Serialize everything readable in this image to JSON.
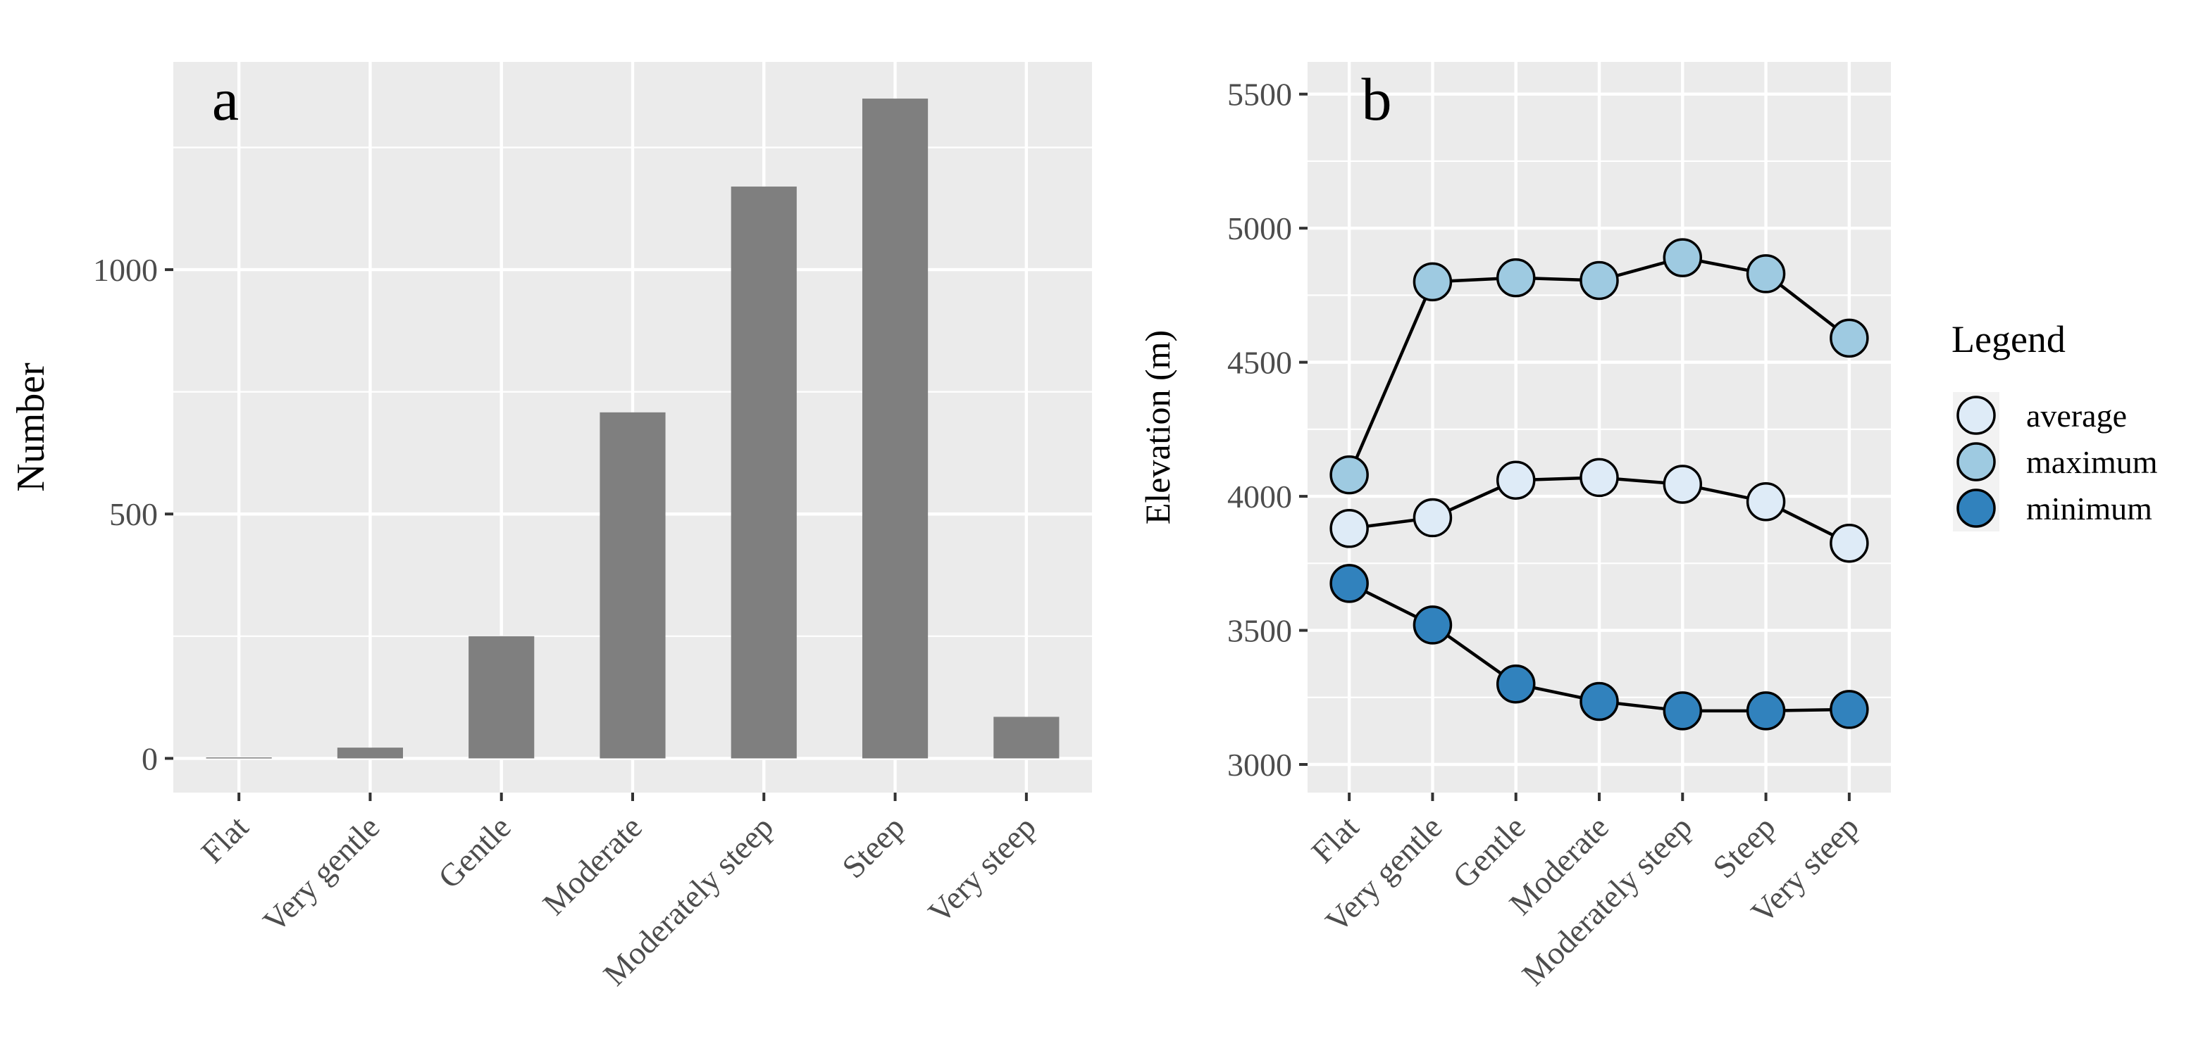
{
  "colors": {
    "panel_bg": "#ebebeb",
    "grid": "#ffffff",
    "bar_fill": "#7f7f7f",
    "line": "#000000",
    "average": "#deebf7",
    "maximum": "#9ecae1",
    "minimum": "#3182bd"
  },
  "chart_data": [
    {
      "type": "bar",
      "panel_label": "a",
      "categories": [
        "Flat",
        "Very gentle",
        "Gentle",
        "Moderate",
        "Moderately steep",
        "Steep",
        "Very steep"
      ],
      "values": [
        2,
        22,
        250,
        708,
        1170,
        1350,
        85
      ],
      "xlabel": "",
      "ylabel": "Number",
      "ylim": [
        -70,
        1425
      ],
      "yticks": [
        0,
        500,
        1000
      ],
      "grid": true
    },
    {
      "type": "line",
      "panel_label": "b",
      "categories": [
        "Flat",
        "Very gentle",
        "Gentle",
        "Moderate",
        "Moderately steep",
        "Steep",
        "Very steep"
      ],
      "series": [
        {
          "name": "average",
          "key": "average",
          "values": [
            3880,
            3920,
            4060,
            4070,
            4045,
            3980,
            3825
          ]
        },
        {
          "name": "maximum",
          "key": "maximum",
          "values": [
            4080,
            4800,
            4815,
            4805,
            4890,
            4830,
            4590
          ]
        },
        {
          "name": "minimum",
          "key": "minimum",
          "values": [
            3675,
            3520,
            3300,
            3235,
            3200,
            3200,
            3205
          ]
        }
      ],
      "xlabel": "",
      "ylabel": "Elevation (m)",
      "ylim": [
        2895,
        5620
      ],
      "yticks": [
        3000,
        3500,
        4000,
        4500,
        5000,
        5500
      ],
      "legend_title": "Legend",
      "legend_position": "right",
      "grid": true
    }
  ]
}
